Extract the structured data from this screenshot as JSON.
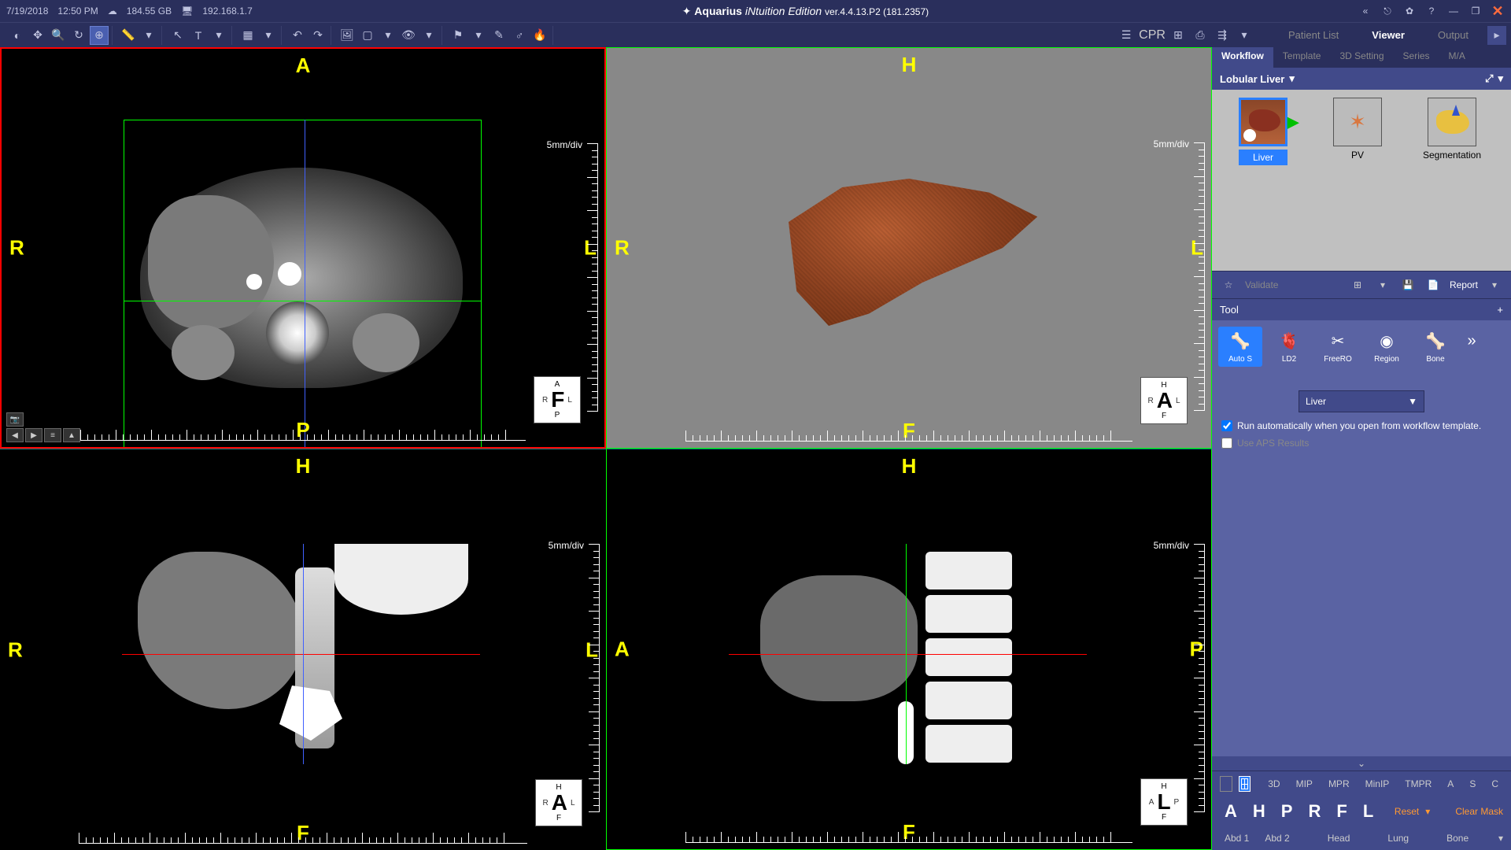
{
  "menubar": {
    "date": "7/19/2018",
    "time": "12:50 PM",
    "storage": "184.55 GB",
    "ip": "192.168.1.7",
    "app_name": "Aquarius",
    "app_edition": "iNtuition Edition",
    "version": "ver.4.4.13.P2 (181.2357)"
  },
  "top_tabs": {
    "patient_list": "Patient List",
    "viewer": "Viewer",
    "output": "Output"
  },
  "toolbar_right": {
    "cpr": "CPR"
  },
  "panel_tabs": {
    "workflow": "Workflow",
    "template": "Template",
    "setting3d": "3D Setting",
    "series": "Series",
    "ma": "M/A"
  },
  "workflow": {
    "title": "Lobular Liver",
    "thumbs": {
      "liver": "Liver",
      "pv": "PV",
      "segmentation": "Segmentation"
    }
  },
  "action_bar": {
    "validate": "Validate",
    "report": "Report"
  },
  "tool_section": {
    "header": "Tool",
    "plus": "+",
    "autos": "Auto S",
    "ld2": "LD2",
    "freero": "FreeRO",
    "region": "Region",
    "bone": "Bone"
  },
  "options": {
    "dropdown": "Liver",
    "auto_run": "Run automatically when you open from workflow template.",
    "aps": "Use APS Results"
  },
  "bottom": {
    "view_modes": {
      "d3": "3D",
      "mip": "MIP",
      "mpr": "MPR",
      "minip": "MinIP",
      "tmpr": "TMPR",
      "a": "A",
      "s": "S",
      "c": "C"
    },
    "letters": {
      "a": "A",
      "h": "H",
      "p": "P",
      "r": "R",
      "f": "F",
      "l": "L"
    },
    "reset": "Reset",
    "clear": "Clear Mask",
    "presets": {
      "abd1": "Abd 1",
      "abd2": "Abd 2",
      "head": "Head",
      "lung": "Lung",
      "bone": "Bone"
    }
  },
  "viewports": {
    "scale": "5mm/div",
    "axial": {
      "top": "A",
      "bottom": "P",
      "left": "R",
      "right": "L",
      "cube": "F",
      "cube_top": "A",
      "cube_bottom": "P",
      "cube_l": "R",
      "cube_r": "L"
    },
    "vr": {
      "top": "H",
      "bottom": "F",
      "left": "R",
      "right": "L",
      "cube": "A",
      "cube_top": "H",
      "cube_bottom": "F",
      "cube_l": "R",
      "cube_r": "L"
    },
    "coronal": {
      "top": "H",
      "bottom": "F",
      "left": "R",
      "right": "L",
      "cube": "A",
      "cube_top": "H",
      "cube_bottom": "F",
      "cube_l": "R",
      "cube_r": "L"
    },
    "sagittal": {
      "top": "H",
      "bottom": "F",
      "left": "A",
      "right": "P",
      "cube": "L",
      "cube_top": "H",
      "cube_bottom": "F",
      "cube_l": "A",
      "cube_r": "P"
    }
  },
  "colors": {
    "menubar_bg": "#2a2f5c",
    "panel_bg": "#414a8a",
    "panel_light": "#5a63a3",
    "accent_blue": "#2a7fff",
    "orient_yellow": "#ffff00",
    "action_orange": "#ff9933",
    "crosshair_green": "#00ff00",
    "crosshair_blue": "#4060ff",
    "crosshair_red": "#ff0000"
  }
}
